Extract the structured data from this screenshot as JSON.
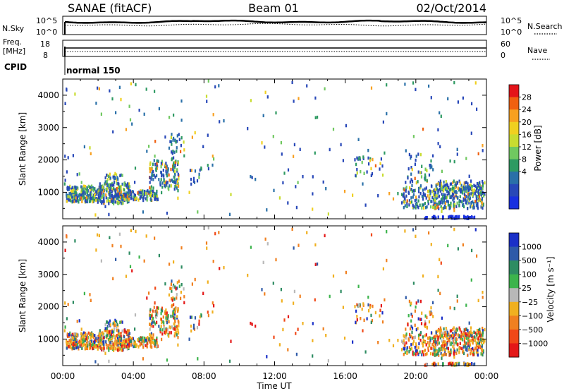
{
  "header": {
    "site": "SANAE (fitACF)",
    "beam": "Beam 01",
    "date": "02/Oct/2014"
  },
  "sky_panel": {
    "left_label": "N.Sky",
    "left_ticks": [
      "10^5",
      "10^0"
    ],
    "right_label": "N.Search",
    "right_ticks": [
      "10^5",
      "10^0"
    ]
  },
  "freq_panel": {
    "left_label_line1": "Freq.",
    "left_label_line2": "[MHz]",
    "left_ticks": [
      "18",
      "8"
    ],
    "right_label": "Nave",
    "right_ticks": [
      "60",
      "0"
    ]
  },
  "cpid": {
    "label": "CPID",
    "mode": "normal 150"
  },
  "chart_data": [
    {
      "type": "heatmap",
      "title": "Power",
      "ylabel": "Slant Range [km]",
      "ylim": [
        180,
        4500
      ],
      "yticks": [
        1000,
        2000,
        3000,
        4000
      ],
      "colorbar_label": "Power [dB]",
      "colorbar_ticks": [
        "28",
        "24",
        "20",
        "16",
        "12",
        "8",
        "4"
      ],
      "colorbar_colors": [
        "#e4141a",
        "#f06010",
        "#f8a020",
        "#f0d020",
        "#c8dc30",
        "#70c860",
        "#2e9a62",
        "#2a70a8",
        "#2848b8",
        "#1830e0"
      ]
    },
    {
      "type": "heatmap",
      "title": "Velocity",
      "ylabel": "Slant Range [km]",
      "ylim": [
        180,
        4500
      ],
      "yticks": [
        1000,
        2000,
        3000,
        4000
      ],
      "xlabel": "Time UT",
      "xticks": [
        "00:00",
        "04:00",
        "08:00",
        "12:00",
        "16:00",
        "20:00",
        "00:00"
      ],
      "colorbar_label": "Velocity [m s⁻¹]",
      "colorbar_ticks": [
        "1000",
        "500",
        "100",
        "25",
        "−25",
        "−100",
        "−500",
        "−1000"
      ],
      "colorbar_colors": [
        "#1a30c8",
        "#2e5aa8",
        "#2e8c62",
        "#3cb44c",
        "#b8b8b8",
        "#f0b020",
        "#f08020",
        "#f04818",
        "#e41818"
      ]
    }
  ],
  "regions": [
    {
      "t0": 0.2,
      "t1": 2.2,
      "r0": 700,
      "r1": 1200,
      "n": 230
    },
    {
      "t0": 2.0,
      "t1": 3.8,
      "r0": 650,
      "r1": 1300,
      "n": 220
    },
    {
      "t0": 2.4,
      "t1": 3.4,
      "r0": 1300,
      "r1": 1600,
      "n": 25
    },
    {
      "t0": 3.6,
      "t1": 5.4,
      "r0": 750,
      "r1": 1050,
      "n": 110
    },
    {
      "t0": 4.9,
      "t1": 6.6,
      "r0": 1050,
      "r1": 2000,
      "n": 130
    },
    {
      "t0": 6.0,
      "t1": 6.9,
      "r0": 1900,
      "r1": 2800,
      "n": 30
    },
    {
      "t0": 7.0,
      "t1": 7.9,
      "r0": 1300,
      "r1": 1800,
      "n": 14
    },
    {
      "t0": 16.5,
      "t1": 18.3,
      "r0": 1500,
      "r1": 2100,
      "n": 30
    },
    {
      "t0": 19.2,
      "t1": 21.2,
      "r0": 500,
      "r1": 1150,
      "n": 110
    },
    {
      "t0": 19.5,
      "t1": 21.0,
      "r0": 1150,
      "r1": 2200,
      "n": 40
    },
    {
      "t0": 21.0,
      "t1": 23.9,
      "r0": 500,
      "r1": 1350,
      "n": 330
    },
    {
      "t0": 20.5,
      "t1": 23.5,
      "r0": 190,
      "r1": 260,
      "n": 55
    },
    {
      "t0": 0.0,
      "t1": 24.0,
      "r0": 300,
      "r1": 4450,
      "n": 200
    }
  ]
}
